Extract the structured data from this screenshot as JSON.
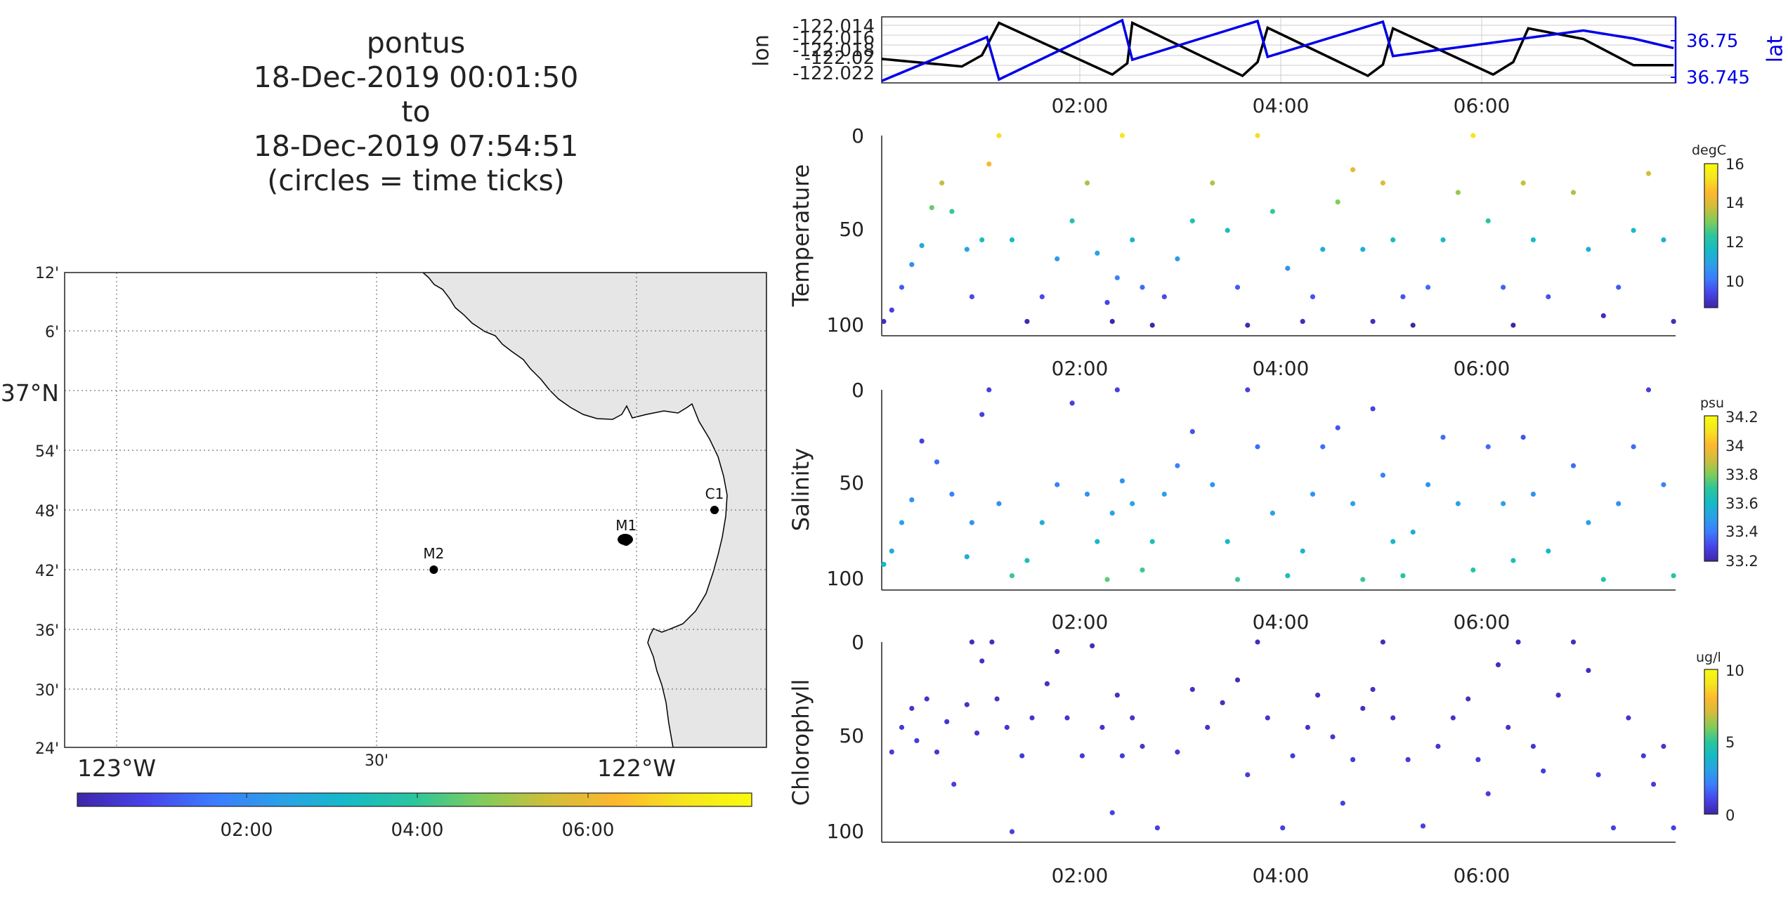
{
  "title": {
    "lines": [
      "pontus",
      "18-Dec-2019 00:01:50",
      "to",
      "18-Dec-2019 07:54:51",
      "(circles = time ticks)"
    ]
  },
  "colors": {
    "viridis": [
      "#3e26a8",
      "#4743e8",
      "#3c7bfd",
      "#2ba0e8",
      "#15bac7",
      "#2bc69d",
      "#81cc59",
      "#d2bd3a",
      "#fdb82e",
      "#f5e51e",
      "#f9fb0e"
    ],
    "track_lon": "#000000",
    "track_lat": "#0000e6",
    "land": "#e6e6e6"
  },
  "map": {
    "lat_ticks": [
      "12'",
      "6'",
      "37°N",
      "54'",
      "48'",
      "42'",
      "36'",
      "30'",
      "24'"
    ],
    "lon_ticks": [
      "123°W",
      "30'",
      "122°W"
    ],
    "stations": [
      {
        "name": "M2",
        "lon": -122.39,
        "lat": 36.7
      },
      {
        "name": "M1",
        "lon": -122.02,
        "lat": 36.747
      },
      {
        "name": "C1",
        "lon": -121.85,
        "lat": 36.8
      }
    ],
    "colorbar_ticks": [
      "02:00",
      "04:00",
      "06:00"
    ]
  },
  "chart_data": [
    {
      "type": "line",
      "title": "",
      "xlabel": "",
      "ylabel": "lon",
      "ylabel_right": "lat",
      "xlim": [
        0.0,
        7.92
      ],
      "xticks": [
        "02:00",
        "04:00",
        "06:00"
      ],
      "y_left_ticks": [
        "-122.014",
        "-122.016",
        "-122.018",
        "-122.02",
        "-122.022"
      ],
      "y_right_ticks": [
        "36.75",
        "36.745"
      ],
      "series": [
        {
          "name": "lon",
          "x": [
            0.0,
            0.8,
            1.0,
            1.17,
            2.3,
            2.45,
            2.5,
            3.6,
            3.75,
            3.85,
            4.85,
            5.0,
            5.1,
            6.1,
            6.3,
            6.45,
            7.0,
            7.5,
            7.9
          ],
          "y": [
            -122.0194,
            -122.0206,
            -122.0188,
            -122.0136,
            -122.0219,
            -122.0201,
            -122.0136,
            -122.0221,
            -122.0199,
            -122.0144,
            -122.0221,
            -122.0203,
            -122.0145,
            -122.0219,
            -122.0199,
            -122.0145,
            -122.0162,
            -122.0204,
            -122.0204
          ]
        },
        {
          "name": "lat",
          "x": [
            0.0,
            1.05,
            1.17,
            2.4,
            2.5,
            3.75,
            3.85,
            5.0,
            5.1,
            7.0,
            7.5,
            7.9
          ],
          "y": [
            36.7445,
            36.7505,
            36.7447,
            36.7528,
            36.7474,
            36.7527,
            36.7478,
            36.7526,
            36.7479,
            36.7514,
            36.7503,
            36.749
          ]
        }
      ]
    },
    {
      "type": "scatter",
      "ylabel": "Temperature",
      "xticks": [
        "02:00",
        "04:00",
        "06:00"
      ],
      "ylim": [
        100,
        0
      ],
      "yticks": [
        "0",
        "50",
        "100"
      ],
      "colorbar": {
        "unit": "degC",
        "range": [
          9,
          16
        ],
        "ticks": [
          "16",
          "14",
          "12",
          "10"
        ]
      },
      "x": [
        0.02,
        0.1,
        0.2,
        0.3,
        0.4,
        0.5,
        0.6,
        0.7,
        0.85,
        0.9,
        1.0,
        1.07,
        1.17,
        1.3,
        1.45,
        1.6,
        1.75,
        1.9,
        2.05,
        2.15,
        2.25,
        2.3,
        2.35,
        2.4,
        2.5,
        2.6,
        2.7,
        2.82,
        2.95,
        3.1,
        3.3,
        3.45,
        3.55,
        3.65,
        3.75,
        3.9,
        4.05,
        4.2,
        4.3,
        4.4,
        4.55,
        4.7,
        4.8,
        4.9,
        5.0,
        5.1,
        5.2,
        5.3,
        5.45,
        5.6,
        5.75,
        5.9,
        6.05,
        6.2,
        6.3,
        6.4,
        6.5,
        6.65,
        6.9,
        7.05,
        7.2,
        7.35,
        7.5,
        7.65,
        7.8,
        7.9
      ],
      "y": [
        98,
        92,
        80,
        68,
        58,
        38,
        25,
        40,
        60,
        85,
        55,
        15,
        0,
        55,
        98,
        85,
        65,
        45,
        25,
        62,
        88,
        98,
        75,
        0,
        55,
        80,
        100,
        85,
        65,
        45,
        25,
        50,
        80,
        100,
        0,
        40,
        70,
        98,
        85,
        60,
        35,
        18,
        60,
        98,
        25,
        55,
        85,
        100,
        80,
        55,
        30,
        0,
        45,
        80,
        100,
        25,
        55,
        85,
        30,
        60,
        95,
        80,
        50,
        20,
        55,
        98
      ],
      "c": [
        9.2,
        9.6,
        10.0,
        10.8,
        11.4,
        13.0,
        13.8,
        12.6,
        11.2,
        9.8,
        12.0,
        14.5,
        15.2,
        11.8,
        9.1,
        9.8,
        11.0,
        12.3,
        13.5,
        11.2,
        9.7,
        9.0,
        10.6,
        15.4,
        11.6,
        10.2,
        9.0,
        9.8,
        11.0,
        12.2,
        13.6,
        12.0,
        10.0,
        9.1,
        15.2,
        12.6,
        10.8,
        9.2,
        9.9,
        11.5,
        13.2,
        14.2,
        11.5,
        9.2,
        14.0,
        11.9,
        9.9,
        9.0,
        10.2,
        11.8,
        13.4,
        15.3,
        12.4,
        10.1,
        9.0,
        13.8,
        11.8,
        9.9,
        13.5,
        11.4,
        9.2,
        10.0,
        11.9,
        13.9,
        11.5,
        9.2
      ]
    },
    {
      "type": "scatter",
      "ylabel": "Salinity",
      "xticks": [
        "02:00",
        "04:00",
        "06:00"
      ],
      "ylim": [
        100,
        0
      ],
      "yticks": [
        "0",
        "50",
        "100"
      ],
      "colorbar": {
        "unit": "psu",
        "range": [
          33.1,
          34.25
        ],
        "ticks": [
          "34.2",
          "34",
          "33.8",
          "33.6",
          "33.4",
          "33.2"
        ]
      },
      "x": [
        0.02,
        0.1,
        0.2,
        0.3,
        0.4,
        0.55,
        0.7,
        0.85,
        0.9,
        1.0,
        1.07,
        1.17,
        1.3,
        1.45,
        1.6,
        1.75,
        1.9,
        2.05,
        2.15,
        2.25,
        2.3,
        2.35,
        2.4,
        2.5,
        2.6,
        2.7,
        2.82,
        2.95,
        3.1,
        3.3,
        3.45,
        3.55,
        3.65,
        3.75,
        3.9,
        4.05,
        4.2,
        4.3,
        4.4,
        4.55,
        4.7,
        4.8,
        4.9,
        5.0,
        5.1,
        5.2,
        5.3,
        5.45,
        5.6,
        5.75,
        5.9,
        6.05,
        6.2,
        6.3,
        6.4,
        6.5,
        6.65,
        6.9,
        7.05,
        7.2,
        7.35,
        7.5,
        7.65,
        7.8,
        7.9
      ],
      "y": [
        92,
        85,
        70,
        58,
        27,
        38,
        55,
        88,
        70,
        13,
        0,
        60,
        98,
        90,
        70,
        50,
        7,
        55,
        80,
        100,
        65,
        0,
        48,
        60,
        95,
        80,
        55,
        40,
        22,
        50,
        80,
        100,
        0,
        30,
        65,
        98,
        85,
        55,
        30,
        20,
        60,
        100,
        10,
        45,
        80,
        98,
        75,
        50,
        25,
        60,
        95,
        30,
        60,
        90,
        25,
        55,
        85,
        40,
        70,
        100,
        60,
        30,
        0,
        50,
        98
      ],
      "c": [
        33.55,
        33.5,
        33.45,
        33.4,
        33.2,
        33.3,
        33.35,
        33.5,
        33.4,
        33.2,
        33.2,
        33.4,
        33.7,
        33.6,
        33.5,
        33.35,
        33.2,
        33.4,
        33.55,
        33.75,
        33.45,
        33.2,
        33.4,
        33.45,
        33.7,
        33.6,
        33.45,
        33.35,
        33.25,
        33.4,
        33.55,
        33.7,
        33.2,
        33.3,
        33.45,
        33.6,
        33.55,
        33.4,
        33.3,
        33.25,
        33.45,
        33.7,
        33.2,
        33.35,
        33.55,
        33.65,
        33.5,
        33.4,
        33.3,
        33.45,
        33.65,
        33.3,
        33.45,
        33.6,
        33.25,
        33.4,
        33.55,
        33.3,
        33.45,
        33.65,
        33.4,
        33.3,
        33.2,
        33.35,
        33.65
      ]
    },
    {
      "type": "scatter",
      "ylabel": "Chlorophyll",
      "xticks": [
        "02:00",
        "04:00",
        "06:00"
      ],
      "ylim": [
        100,
        0
      ],
      "yticks": [
        "0",
        "50",
        "100"
      ],
      "colorbar": {
        "unit": "ug/l",
        "range": [
          0,
          10
        ],
        "ticks": [
          "10",
          "5",
          "0"
        ]
      },
      "x": [
        0.1,
        0.2,
        0.3,
        0.35,
        0.45,
        0.55,
        0.65,
        0.72,
        0.85,
        0.9,
        0.95,
        1.0,
        1.1,
        1.15,
        1.25,
        1.3,
        1.4,
        1.5,
        1.65,
        1.75,
        1.85,
        2.0,
        2.1,
        2.2,
        2.3,
        2.35,
        2.4,
        2.5,
        2.6,
        2.75,
        2.95,
        3.1,
        3.25,
        3.4,
        3.55,
        3.65,
        3.75,
        3.85,
        4.0,
        4.1,
        4.25,
        4.35,
        4.5,
        4.6,
        4.7,
        4.8,
        4.9,
        5.0,
        5.1,
        5.25,
        5.4,
        5.55,
        5.7,
        5.85,
        5.95,
        6.05,
        6.15,
        6.25,
        6.35,
        6.5,
        6.6,
        6.75,
        6.9,
        7.05,
        7.15,
        7.3,
        7.45,
        7.6,
        7.7,
        7.8,
        7.9
      ],
      "y": [
        58,
        45,
        35,
        52,
        30,
        58,
        42,
        75,
        33,
        0,
        48,
        10,
        0,
        30,
        45,
        100,
        60,
        40,
        22,
        5,
        40,
        60,
        2,
        45,
        90,
        28,
        60,
        40,
        55,
        98,
        58,
        25,
        45,
        32,
        20,
        70,
        0,
        40,
        98,
        60,
        45,
        28,
        50,
        85,
        62,
        35,
        25,
        0,
        40,
        62,
        97,
        55,
        40,
        30,
        62,
        80,
        12,
        45,
        0,
        55,
        68,
        28,
        0,
        15,
        70,
        98,
        40,
        60,
        75,
        55,
        98
      ],
      "c": [
        0.8,
        0.7,
        0.6,
        0.8,
        0.5,
        0.7,
        0.6,
        0.9,
        0.5,
        0.3,
        0.6,
        0.4,
        0.3,
        0.5,
        0.6,
        0.9,
        0.7,
        0.5,
        0.4,
        0.3,
        0.5,
        0.7,
        0.3,
        0.5,
        0.9,
        0.4,
        0.7,
        0.5,
        0.6,
        0.9,
        0.7,
        0.4,
        0.5,
        0.4,
        0.3,
        0.8,
        0.3,
        0.5,
        0.9,
        0.7,
        0.5,
        0.4,
        0.6,
        0.9,
        0.7,
        0.4,
        0.4,
        0.3,
        0.5,
        0.7,
        0.9,
        0.6,
        0.5,
        0.4,
        0.7,
        0.8,
        0.3,
        0.5,
        0.3,
        0.6,
        0.8,
        0.4,
        0.3,
        0.3,
        0.8,
        0.9,
        0.5,
        0.7,
        0.8,
        0.6,
        0.9
      ]
    }
  ]
}
